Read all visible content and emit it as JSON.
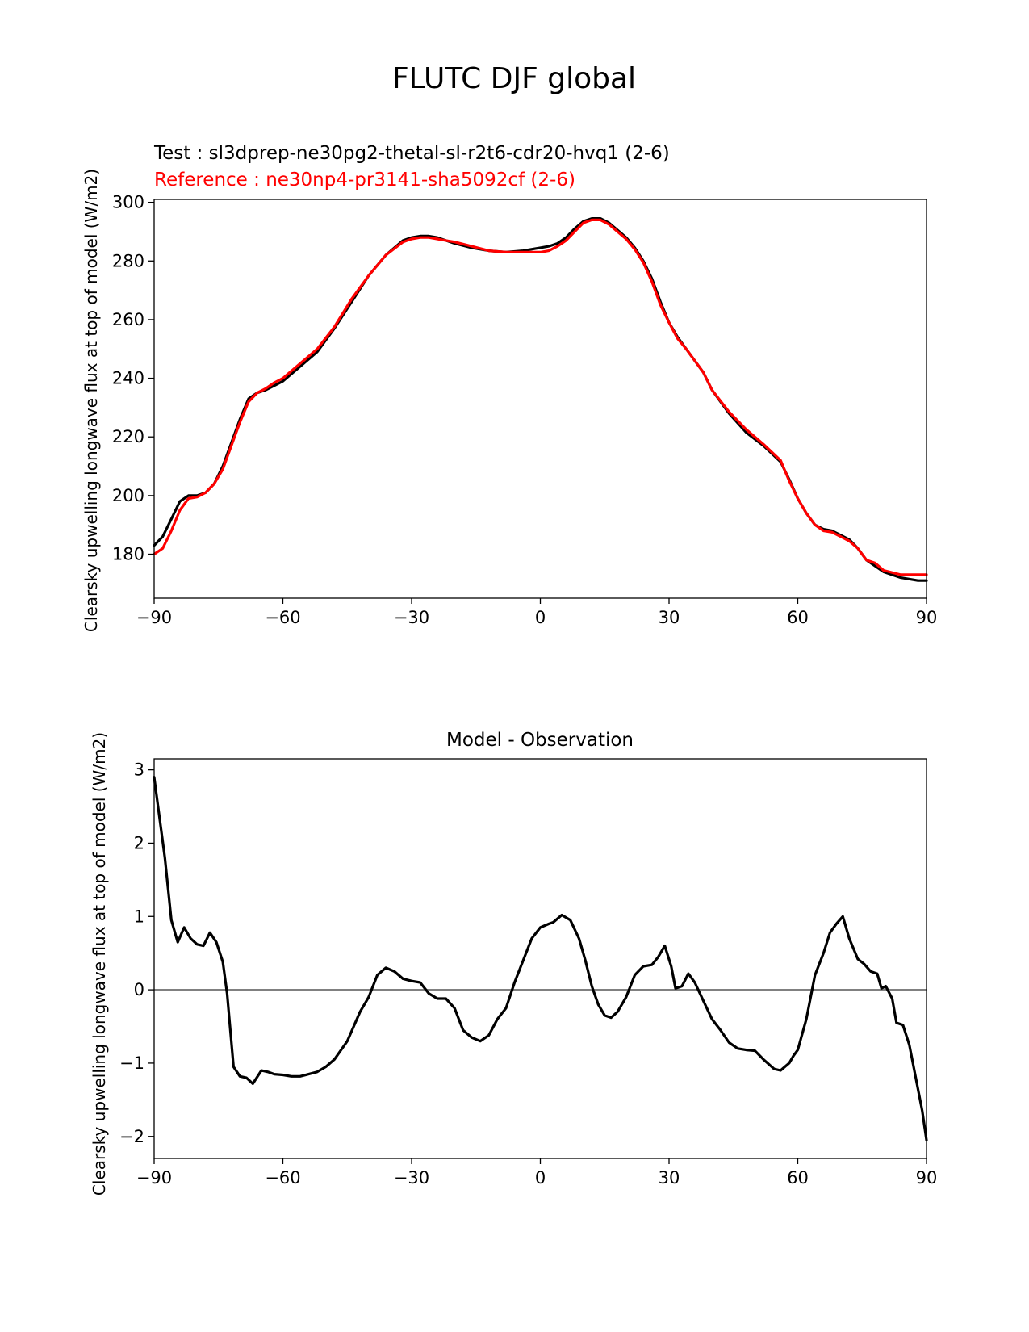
{
  "figure": {
    "suptitle": "FLUTC DJF global",
    "test_label": "Test : sl3dprep-ne30pg2-thetal-sl-r2t6-cdr20-hvq1 (2-6)",
    "reference_label": "Reference : ne30np4-pr3141-sha5092cf (2-6)",
    "colors": {
      "test": "#000000",
      "reference": "#ff0000",
      "zero_line": "#808080"
    }
  },
  "chart_data": [
    {
      "type": "line",
      "title": "",
      "xlabel": "",
      "ylabel": "Clearsky upwelling longwave flux at top of model (W/m2)",
      "xlim": [
        -90,
        90
      ],
      "ylim": [
        165,
        301
      ],
      "xticks": [
        -90,
        -60,
        -30,
        0,
        30,
        60,
        90
      ],
      "xtick_labels": [
        "−90",
        "−60",
        "−30",
        "0",
        "30",
        "60",
        "90"
      ],
      "yticks": [
        180,
        200,
        220,
        240,
        260,
        280,
        300
      ],
      "ytick_labels": [
        "180",
        "200",
        "220",
        "240",
        "260",
        "280",
        "300"
      ],
      "grid": false,
      "series": [
        {
          "name": "Test : sl3dprep-ne30pg2-thetal-sl-r2t6-cdr20-hvq1 (2-6)",
          "color": "#000000",
          "x": [
            -90,
            -88,
            -86,
            -84,
            -82,
            -80,
            -78,
            -76,
            -74,
            -72,
            -70,
            -68,
            -66,
            -64,
            -62,
            -60,
            -56,
            -52,
            -48,
            -44,
            -40,
            -36,
            -32,
            -30,
            -28,
            -26,
            -24,
            -22,
            -20,
            -16,
            -12,
            -8,
            -4,
            0,
            2,
            4,
            6,
            8,
            10,
            12,
            14,
            16,
            18,
            20,
            22,
            24,
            26,
            28,
            30,
            32,
            34,
            36,
            38,
            40,
            44,
            48,
            52,
            56,
            58,
            60,
            62,
            64,
            66,
            68,
            70,
            72,
            74,
            76,
            78,
            80,
            84,
            88,
            90
          ],
          "y": [
            183,
            186,
            192,
            198,
            200,
            200,
            201,
            204,
            210,
            218,
            226,
            233,
            235,
            236,
            237.5,
            239,
            244,
            249,
            257,
            266,
            275,
            282,
            287,
            288,
            288.5,
            288.5,
            288,
            287,
            286,
            284.5,
            283.5,
            283,
            283.5,
            284.5,
            285,
            286,
            288,
            291,
            293.5,
            294.5,
            294.5,
            293,
            290.5,
            288,
            284.5,
            280,
            274,
            266,
            259,
            254,
            250,
            246,
            242,
            236,
            228,
            221.5,
            217,
            211.5,
            205.5,
            199,
            194,
            190,
            188.5,
            188,
            186.5,
            185,
            182,
            178,
            176,
            174,
            172,
            171,
            171
          ]
        },
        {
          "name": "Reference : ne30np4-pr3141-sha5092cf (2-6)",
          "color": "#ff0000",
          "x": [
            -90,
            -88,
            -86,
            -84,
            -82,
            -80,
            -78,
            -76,
            -74,
            -72,
            -70,
            -68,
            -66,
            -64,
            -62,
            -60,
            -56,
            -52,
            -48,
            -44,
            -40,
            -36,
            -32,
            -30,
            -28,
            -26,
            -24,
            -22,
            -20,
            -16,
            -12,
            -8,
            -4,
            0,
            2,
            4,
            6,
            8,
            10,
            12,
            14,
            16,
            18,
            20,
            22,
            24,
            26,
            28,
            30,
            32,
            34,
            36,
            38,
            40,
            44,
            48,
            52,
            56,
            58,
            60,
            62,
            64,
            66,
            68,
            70,
            72,
            74,
            76,
            78,
            80,
            84,
            88,
            90
          ],
          "y": [
            180,
            182,
            188,
            195,
            199,
            199.5,
            201,
            204,
            209,
            217,
            225,
            232,
            235,
            236.5,
            238.5,
            240,
            245,
            250,
            257.5,
            267,
            275,
            282,
            286.5,
            287.5,
            288,
            288,
            287.5,
            287,
            286.5,
            285,
            283.5,
            283,
            283,
            283,
            283.5,
            285,
            287,
            290,
            293,
            294,
            294,
            292.5,
            290,
            287.5,
            284,
            279.5,
            273,
            265,
            259,
            253.5,
            250,
            246,
            242,
            236,
            228.5,
            222.5,
            217.5,
            212,
            205,
            199,
            194,
            190,
            188,
            187.5,
            186,
            184.5,
            182,
            178,
            177,
            174.5,
            173,
            173,
            173
          ]
        }
      ]
    },
    {
      "type": "line",
      "title": "Model - Observation",
      "xlabel": "",
      "ylabel": "Clearsky upwelling longwave flux at top of model (W/m2)",
      "xlim": [
        -90,
        90
      ],
      "ylim": [
        -2.3,
        3.15
      ],
      "xticks": [
        -90,
        -60,
        -30,
        0,
        30,
        60,
        90
      ],
      "xtick_labels": [
        "−90",
        "−60",
        "−30",
        "0",
        "30",
        "60",
        "90"
      ],
      "yticks": [
        -2,
        -1,
        0,
        1,
        2,
        3
      ],
      "ytick_labels": [
        "−2",
        "−1",
        "0",
        "1",
        "2",
        "3"
      ],
      "grid": false,
      "zero_line": 0,
      "series": [
        {
          "color": "#000000",
          "x": [
            -90,
            -87.5,
            -86,
            -84.5,
            -83,
            -81.5,
            -80,
            -78.5,
            -77,
            -75.5,
            -74,
            -73,
            -71.5,
            -70,
            -68.5,
            -67,
            -65,
            -63.5,
            -62,
            -60,
            -58,
            -56,
            -54,
            -52,
            -50,
            -48,
            -45,
            -42,
            -40,
            -38,
            -36,
            -34,
            -32,
            -30,
            -28,
            -26,
            -24,
            -22,
            -20,
            -18,
            -16,
            -14,
            -12,
            -10,
            -8,
            -6,
            -4,
            -2,
            0,
            2,
            3,
            5,
            7,
            9,
            10.5,
            12,
            13.5,
            15,
            16.5,
            18,
            20,
            22,
            24,
            26,
            27.5,
            29,
            30.5,
            31.5,
            33,
            34.5,
            36,
            38,
            40,
            42,
            44,
            46,
            48,
            50,
            52,
            54.5,
            56,
            58,
            59,
            60,
            62,
            64,
            66,
            67.5,
            69,
            70.5,
            72,
            74,
            75.5,
            77,
            78.5,
            79.5,
            80.5,
            82,
            83,
            84.5,
            86,
            87.5,
            89,
            90
          ],
          "y": [
            2.9,
            1.8,
            0.95,
            0.65,
            0.85,
            0.7,
            0.62,
            0.6,
            0.78,
            0.65,
            0.38,
            -0.05,
            -1.05,
            -1.18,
            -1.2,
            -1.28,
            -1.1,
            -1.12,
            -1.15,
            -1.16,
            -1.18,
            -1.18,
            -1.15,
            -1.12,
            -1.05,
            -0.95,
            -0.7,
            -0.3,
            -0.1,
            0.2,
            0.3,
            0.25,
            0.15,
            0.12,
            0.1,
            -0.05,
            -0.12,
            -0.12,
            -0.25,
            -0.55,
            -0.65,
            -0.7,
            -0.62,
            -0.4,
            -0.25,
            0.1,
            0.4,
            0.7,
            0.85,
            0.9,
            0.92,
            1.02,
            0.95,
            0.7,
            0.4,
            0.05,
            -0.2,
            -0.35,
            -0.38,
            -0.3,
            -0.1,
            0.2,
            0.32,
            0.34,
            0.45,
            0.6,
            0.32,
            0.02,
            0.05,
            0.22,
            0.1,
            -0.15,
            -0.4,
            -0.55,
            -0.72,
            -0.8,
            -0.82,
            -0.83,
            -0.95,
            -1.08,
            -1.1,
            -1.0,
            -0.9,
            -0.82,
            -0.4,
            0.2,
            0.5,
            0.78,
            0.9,
            1.0,
            0.7,
            0.42,
            0.35,
            0.25,
            0.22,
            0.02,
            0.05,
            -0.12,
            -0.45,
            -0.48,
            -0.75,
            -1.2,
            -1.65,
            -2.05
          ]
        }
      ]
    }
  ]
}
